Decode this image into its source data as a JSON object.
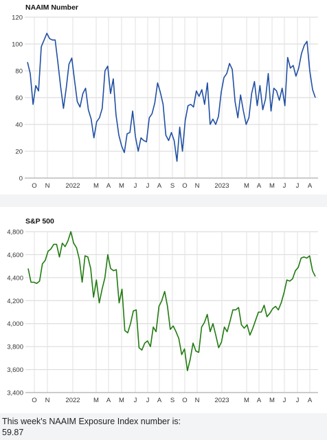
{
  "chart_data": [
    {
      "type": "line",
      "title": "NAAIM Number",
      "color": "#1f4fa3",
      "ylim": [
        0,
        120
      ],
      "yticks": [
        0,
        20,
        40,
        60,
        80,
        100,
        120
      ],
      "ytick_labels": [
        "0",
        "20",
        "40",
        "60",
        "80",
        "100",
        "120"
      ],
      "x_labels": [
        "O",
        "N",
        "2022",
        "M",
        "A",
        "M",
        "J",
        "J",
        "A",
        "S",
        "O",
        "N",
        "2023",
        "M",
        "A",
        "M",
        "J",
        "J",
        "A"
      ],
      "grid": true,
      "series": [
        {
          "values": [
            86.5,
            78,
            55,
            69,
            65,
            98,
            103,
            108,
            104,
            103,
            103,
            86,
            68,
            52,
            67,
            85,
            89.5,
            73,
            57,
            53,
            63,
            67,
            51,
            44,
            30,
            42,
            45,
            52,
            80,
            83.5,
            63,
            74,
            47,
            32,
            24,
            19,
            33,
            34,
            50,
            31,
            20,
            30,
            28,
            27,
            45,
            48,
            56,
            71,
            64,
            55,
            32,
            28,
            34,
            28,
            12.5,
            38,
            20,
            43,
            54,
            55,
            53,
            65,
            61,
            66,
            55,
            71,
            40,
            44,
            40,
            46,
            64,
            75,
            78,
            85.5,
            81,
            57,
            45,
            62,
            50,
            40,
            45,
            63,
            72,
            54,
            69,
            51,
            59,
            78,
            50,
            67,
            65,
            58,
            67,
            54,
            90,
            82,
            84,
            76,
            82,
            93,
            99,
            102,
            80,
            66,
            60
          ]
        }
      ]
    },
    {
      "type": "line",
      "title": "S&P 500",
      "color": "#1f7a0f",
      "ylim": [
        3400,
        4800
      ],
      "yticks": [
        3400,
        3600,
        3800,
        4000,
        4200,
        4400,
        4600,
        4800
      ],
      "ytick_labels": [
        "3,400",
        "3,600",
        "3,800",
        "4,000",
        "4,200",
        "4,400",
        "4,600",
        "4,800"
      ],
      "x_labels": [
        "O",
        "N",
        "2022",
        "M",
        "A",
        "M",
        "J",
        "J",
        "A",
        "S",
        "O",
        "N",
        "2023",
        "M",
        "A",
        "M",
        "J",
        "J",
        "A"
      ],
      "grid": true,
      "series": [
        {
          "values": [
            4480,
            4360,
            4360,
            4350,
            4370,
            4520,
            4550,
            4630,
            4650,
            4690,
            4690,
            4580,
            4700,
            4670,
            4720,
            4800,
            4700,
            4660,
            4560,
            4360,
            4590,
            4580,
            4480,
            4230,
            4380,
            4180,
            4300,
            4400,
            4600,
            4480,
            4460,
            4470,
            4180,
            4300,
            3940,
            3920,
            4000,
            4110,
            4120,
            3790,
            3770,
            3830,
            3850,
            3800,
            3970,
            3930,
            4150,
            4200,
            4280,
            4150,
            3950,
            3980,
            3930,
            3870,
            3730,
            3780,
            3590,
            3690,
            3830,
            3760,
            3750,
            3970,
            4010,
            4080,
            3930,
            4000,
            3900,
            3790,
            3840,
            3970,
            3930,
            4020,
            4120,
            4120,
            4140,
            3990,
            3960,
            3990,
            3900,
            3960,
            4030,
            4100,
            4100,
            4160,
            4060,
            4090,
            4130,
            4150,
            4120,
            4180,
            4270,
            4380,
            4370,
            4390,
            4460,
            4490,
            4570,
            4580,
            4570,
            4590,
            4460,
            4410
          ]
        }
      ]
    }
  ],
  "footer": {
    "line1": "This week's NAAIM Exposure Index number is:",
    "line2": "59.87"
  }
}
